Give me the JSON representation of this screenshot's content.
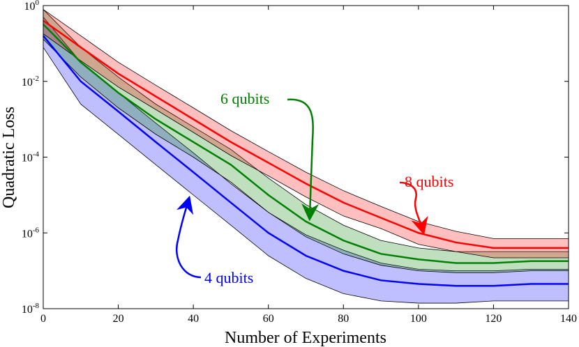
{
  "chart_data": {
    "type": "band-line",
    "x_label": "Number of Experiments",
    "y_label": "Quadratic Loss",
    "x": [
      0,
      10,
      20,
      30,
      40,
      50,
      60,
      70,
      80,
      90,
      100,
      110,
      120,
      130,
      140
    ],
    "xlim": [
      0,
      140
    ],
    "xticks": [
      0,
      20,
      40,
      60,
      80,
      100,
      120,
      140
    ],
    "log_y": true,
    "ylim": [
      1e-08,
      1
    ],
    "yticks": [
      {
        "value": 1,
        "label": "10^0"
      },
      {
        "value": 0.01,
        "label": "10^-2"
      },
      {
        "value": 0.0001,
        "label": "10^-4"
      },
      {
        "value": 1e-06,
        "label": "10^-6"
      },
      {
        "value": 1e-08,
        "label": "10^-8"
      }
    ],
    "series": [
      {
        "name": "4 qubits",
        "color": "#0000ff",
        "values": [
          0.16,
          0.01,
          0.0016,
          0.00025,
          4e-05,
          6.3e-06,
          1e-06,
          2.5e-07,
          1e-07,
          5.6e-08,
          4.5e-08,
          4e-08,
          4e-08,
          4.5e-08,
          4.5e-08
        ],
        "upper": [
          0.5,
          0.032,
          0.005,
          0.00079,
          0.00013,
          2e-05,
          3.5e-06,
          8.9e-07,
          3.5e-07,
          1.6e-07,
          1.1e-07,
          1e-07,
          1e-07,
          1.1e-07,
          1.1e-07
        ],
        "lower": [
          0.079,
          0.0025,
          0.0004,
          6.3e-05,
          1e-05,
          1.6e-06,
          2.5e-07,
          6.3e-08,
          2.5e-08,
          1.6e-08,
          1.4e-08,
          1.4e-08,
          1.6e-08,
          1.6e-08,
          1.6e-08
        ]
      },
      {
        "name": "6 qubits",
        "color": "#008000",
        "values": [
          0.32,
          0.032,
          0.005,
          0.001,
          0.00025,
          6.3e-05,
          1e-05,
          2e-06,
          6.3e-07,
          2.8e-07,
          2e-07,
          1.6e-07,
          1.6e-07,
          1.8e-07,
          1.8e-07
        ],
        "upper": [
          0.79,
          0.079,
          0.013,
          0.0025,
          0.00063,
          0.00016,
          2.8e-05,
          5.6e-06,
          1.6e-06,
          6.3e-07,
          4e-07,
          3.2e-07,
          3.2e-07,
          3.2e-07,
          3.2e-07
        ],
        "lower": [
          0.13,
          0.013,
          0.002,
          0.0004,
          0.0001,
          2.2e-05,
          3.5e-06,
          7.9e-07,
          2.8e-07,
          1.4e-07,
          1e-07,
          8.9e-08,
          8.9e-08,
          1e-07,
          1e-07
        ]
      },
      {
        "name": "8 qubits",
        "color": "#ff0000",
        "values": [
          0.4,
          0.079,
          0.016,
          0.004,
          0.001,
          0.00025,
          7.1e-05,
          2e-05,
          6.3e-06,
          2.5e-06,
          1e-06,
          5.6e-07,
          4e-07,
          4e-07,
          4e-07
        ],
        "upper": [
          0.79,
          0.16,
          0.032,
          0.0079,
          0.002,
          0.0005,
          0.00014,
          4e-05,
          1.3e-05,
          5e-06,
          2e-06,
          1.1e-06,
          7.1e-07,
          7.1e-07,
          7.1e-07
        ],
        "lower": [
          0.18,
          0.035,
          0.0071,
          0.0018,
          0.00045,
          0.00011,
          3.2e-05,
          8.9e-06,
          2.8e-06,
          1.3e-06,
          5e-07,
          3.2e-07,
          2.2e-07,
          2.2e-07,
          2.2e-07
        ]
      }
    ]
  }
}
